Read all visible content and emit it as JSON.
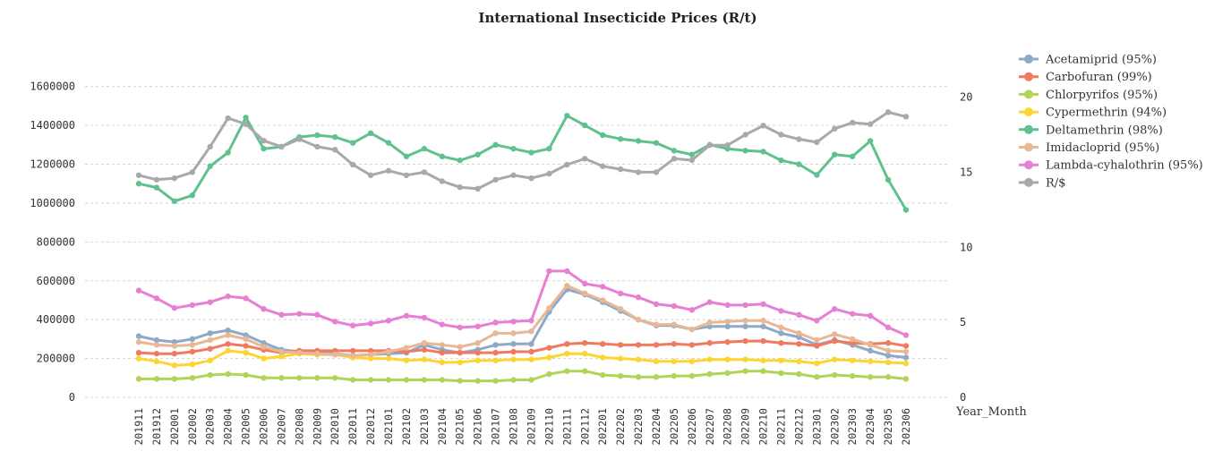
{
  "chart_data": {
    "type": "line",
    "title": "International Insecticide Prices (R/t)",
    "xlabel": "Year_Month",
    "ylabel": "",
    "ylim": [
      0,
      1700000
    ],
    "y2lim": [
      0,
      22
    ],
    "yticks": [
      "0",
      "200000",
      "400000",
      "600000",
      "800000",
      "1000000",
      "1200000",
      "1400000",
      "1600000"
    ],
    "y2ticks": [
      "0",
      "5",
      "10",
      "15",
      "20"
    ],
    "grid": true,
    "legend_position": "right",
    "categories": [
      "201911",
      "201912",
      "202001",
      "202002",
      "202003",
      "202004",
      "202005",
      "202006",
      "202007",
      "202008",
      "202009",
      "202010",
      "202011",
      "202012",
      "202101",
      "202102",
      "202103",
      "202104",
      "202105",
      "202106",
      "202107",
      "202108",
      "202109",
      "202110",
      "202111",
      "202112",
      "202201",
      "202202",
      "202203",
      "202204",
      "202205",
      "202206",
      "202207",
      "202208",
      "202209",
      "202210",
      "202211",
      "202212",
      "202301",
      "202302",
      "202303",
      "202304",
      "202305",
      "202306"
    ],
    "series": [
      {
        "name": "Acetamiprid (95%)",
        "color": "#8fa9c8",
        "axis": "left",
        "values": [
          315000,
          295000,
          285000,
          300000,
          330000,
          345000,
          320000,
          280000,
          245000,
          235000,
          235000,
          225000,
          215000,
          220000,
          225000,
          230000,
          270000,
          245000,
          230000,
          245000,
          270000,
          275000,
          275000,
          440000,
          555000,
          530000,
          490000,
          445000,
          400000,
          370000,
          370000,
          350000,
          365000,
          365000,
          365000,
          365000,
          330000,
          310000,
          270000,
          295000,
          270000,
          240000,
          215000,
          205000
        ]
      },
      {
        "name": "Carbofuran (99%)",
        "color": "#f07a5f",
        "axis": "left",
        "values": [
          230000,
          225000,
          225000,
          235000,
          250000,
          275000,
          265000,
          245000,
          230000,
          240000,
          240000,
          240000,
          240000,
          240000,
          240000,
          235000,
          245000,
          230000,
          230000,
          230000,
          230000,
          235000,
          235000,
          255000,
          275000,
          280000,
          275000,
          270000,
          270000,
          270000,
          275000,
          270000,
          280000,
          285000,
          290000,
          290000,
          280000,
          275000,
          265000,
          290000,
          280000,
          275000,
          280000,
          265000
        ]
      },
      {
        "name": "Chlorpyrifos (95%)",
        "color": "#b2d35a",
        "axis": "left",
        "values": [
          95000,
          95000,
          95000,
          100000,
          115000,
          120000,
          115000,
          100000,
          100000,
          100000,
          100000,
          100000,
          90000,
          90000,
          90000,
          90000,
          90000,
          90000,
          85000,
          85000,
          85000,
          90000,
          90000,
          120000,
          135000,
          135000,
          115000,
          110000,
          105000,
          105000,
          110000,
          110000,
          120000,
          125000,
          135000,
          135000,
          125000,
          120000,
          105000,
          115000,
          110000,
          105000,
          105000,
          95000
        ]
      },
      {
        "name": "Cypermethrin (94%)",
        "color": "#fdd533",
        "axis": "left",
        "values": [
          200000,
          185000,
          165000,
          170000,
          190000,
          240000,
          230000,
          200000,
          210000,
          225000,
          220000,
          220000,
          205000,
          200000,
          200000,
          190000,
          195000,
          180000,
          180000,
          190000,
          190000,
          195000,
          195000,
          205000,
          225000,
          225000,
          205000,
          200000,
          195000,
          185000,
          185000,
          185000,
          195000,
          195000,
          195000,
          190000,
          190000,
          185000,
          175000,
          195000,
          190000,
          185000,
          180000,
          175000
        ]
      },
      {
        "name": "Deltamethrin (98%)",
        "color": "#5fc18e",
        "axis": "left",
        "values": [
          1100000,
          1080000,
          1010000,
          1040000,
          1190000,
          1260000,
          1440000,
          1280000,
          1290000,
          1340000,
          1350000,
          1340000,
          1310000,
          1360000,
          1310000,
          1240000,
          1280000,
          1240000,
          1220000,
          1250000,
          1300000,
          1280000,
          1260000,
          1280000,
          1450000,
          1400000,
          1350000,
          1330000,
          1320000,
          1310000,
          1270000,
          1250000,
          1300000,
          1280000,
          1270000,
          1265000,
          1220000,
          1200000,
          1145000,
          1250000,
          1240000,
          1320000,
          1120000,
          965000
        ]
      },
      {
        "name": "Imidacloprid (95%)",
        "color": "#e8b896",
        "axis": "left",
        "values": [
          285000,
          270000,
          265000,
          270000,
          295000,
          320000,
          300000,
          260000,
          235000,
          230000,
          225000,
          220000,
          215000,
          220000,
          235000,
          255000,
          280000,
          270000,
          260000,
          280000,
          330000,
          330000,
          340000,
          460000,
          575000,
          535000,
          500000,
          455000,
          400000,
          375000,
          375000,
          350000,
          385000,
          390000,
          395000,
          395000,
          360000,
          330000,
          295000,
          325000,
          300000,
          270000,
          240000,
          235000
        ]
      },
      {
        "name": "Lambda-cyhalothrin (95%)",
        "color": "#e680d2",
        "axis": "left",
        "values": [
          550000,
          510000,
          460000,
          475000,
          490000,
          520000,
          510000,
          455000,
          425000,
          430000,
          425000,
          390000,
          370000,
          380000,
          395000,
          420000,
          410000,
          375000,
          360000,
          365000,
          385000,
          390000,
          395000,
          650000,
          650000,
          585000,
          570000,
          535000,
          515000,
          480000,
          470000,
          450000,
          490000,
          475000,
          475000,
          480000,
          445000,
          425000,
          395000,
          455000,
          430000,
          420000,
          360000,
          320000
        ]
      },
      {
        "name": "R/$",
        "color": "#a9a9a9",
        "axis": "right",
        "values": [
          14.8,
          14.5,
          14.6,
          15.0,
          16.7,
          18.6,
          18.2,
          17.1,
          16.7,
          17.2,
          16.7,
          16.5,
          15.5,
          14.8,
          15.1,
          14.8,
          15.0,
          14.4,
          14.0,
          13.9,
          14.5,
          14.8,
          14.6,
          14.9,
          15.5,
          15.9,
          15.4,
          15.2,
          15.0,
          15.0,
          15.9,
          15.8,
          16.8,
          16.8,
          17.5,
          18.1,
          17.5,
          17.2,
          17.0,
          17.9,
          18.3,
          18.2,
          19.0,
          18.7
        ]
      }
    ]
  }
}
